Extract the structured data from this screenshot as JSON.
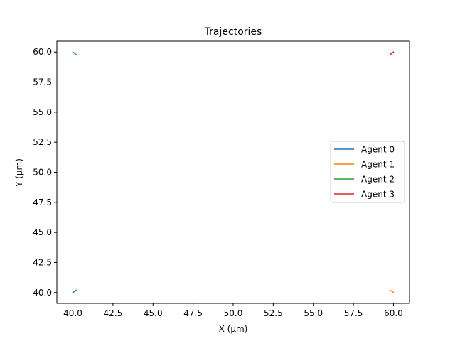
{
  "chart_data": {
    "type": "line",
    "title": "Trajectories",
    "xlabel": "X (μm)",
    "ylabel": "Y (μm)",
    "xlim": [
      39.0,
      61.0
    ],
    "ylim": [
      39.1,
      60.9
    ],
    "xticks": [
      "40.0",
      "42.5",
      "45.0",
      "47.5",
      "50.0",
      "52.5",
      "55.0",
      "57.5",
      "60.0"
    ],
    "yticks": [
      "40.0",
      "42.5",
      "45.0",
      "47.5",
      "50.0",
      "52.5",
      "55.0",
      "57.5",
      "60.0"
    ],
    "grid": false,
    "legend_position": "center-right",
    "series": [
      {
        "name": "Agent 0",
        "color": "#1f77b4",
        "x": [
          40.0,
          40.2
        ],
        "y": [
          40.0,
          40.2
        ]
      },
      {
        "name": "Agent 1",
        "color": "#ff7f0e",
        "x": [
          60.0,
          59.8
        ],
        "y": [
          40.0,
          40.2
        ]
      },
      {
        "name": "Agent 2",
        "color": "#2ca02c",
        "x": [
          40.0,
          40.2
        ],
        "y": [
          60.0,
          59.8
        ]
      },
      {
        "name": "Agent 3",
        "color": "#d62728",
        "x": [
          60.0,
          59.8
        ],
        "y": [
          60.0,
          59.8
        ]
      }
    ]
  }
}
